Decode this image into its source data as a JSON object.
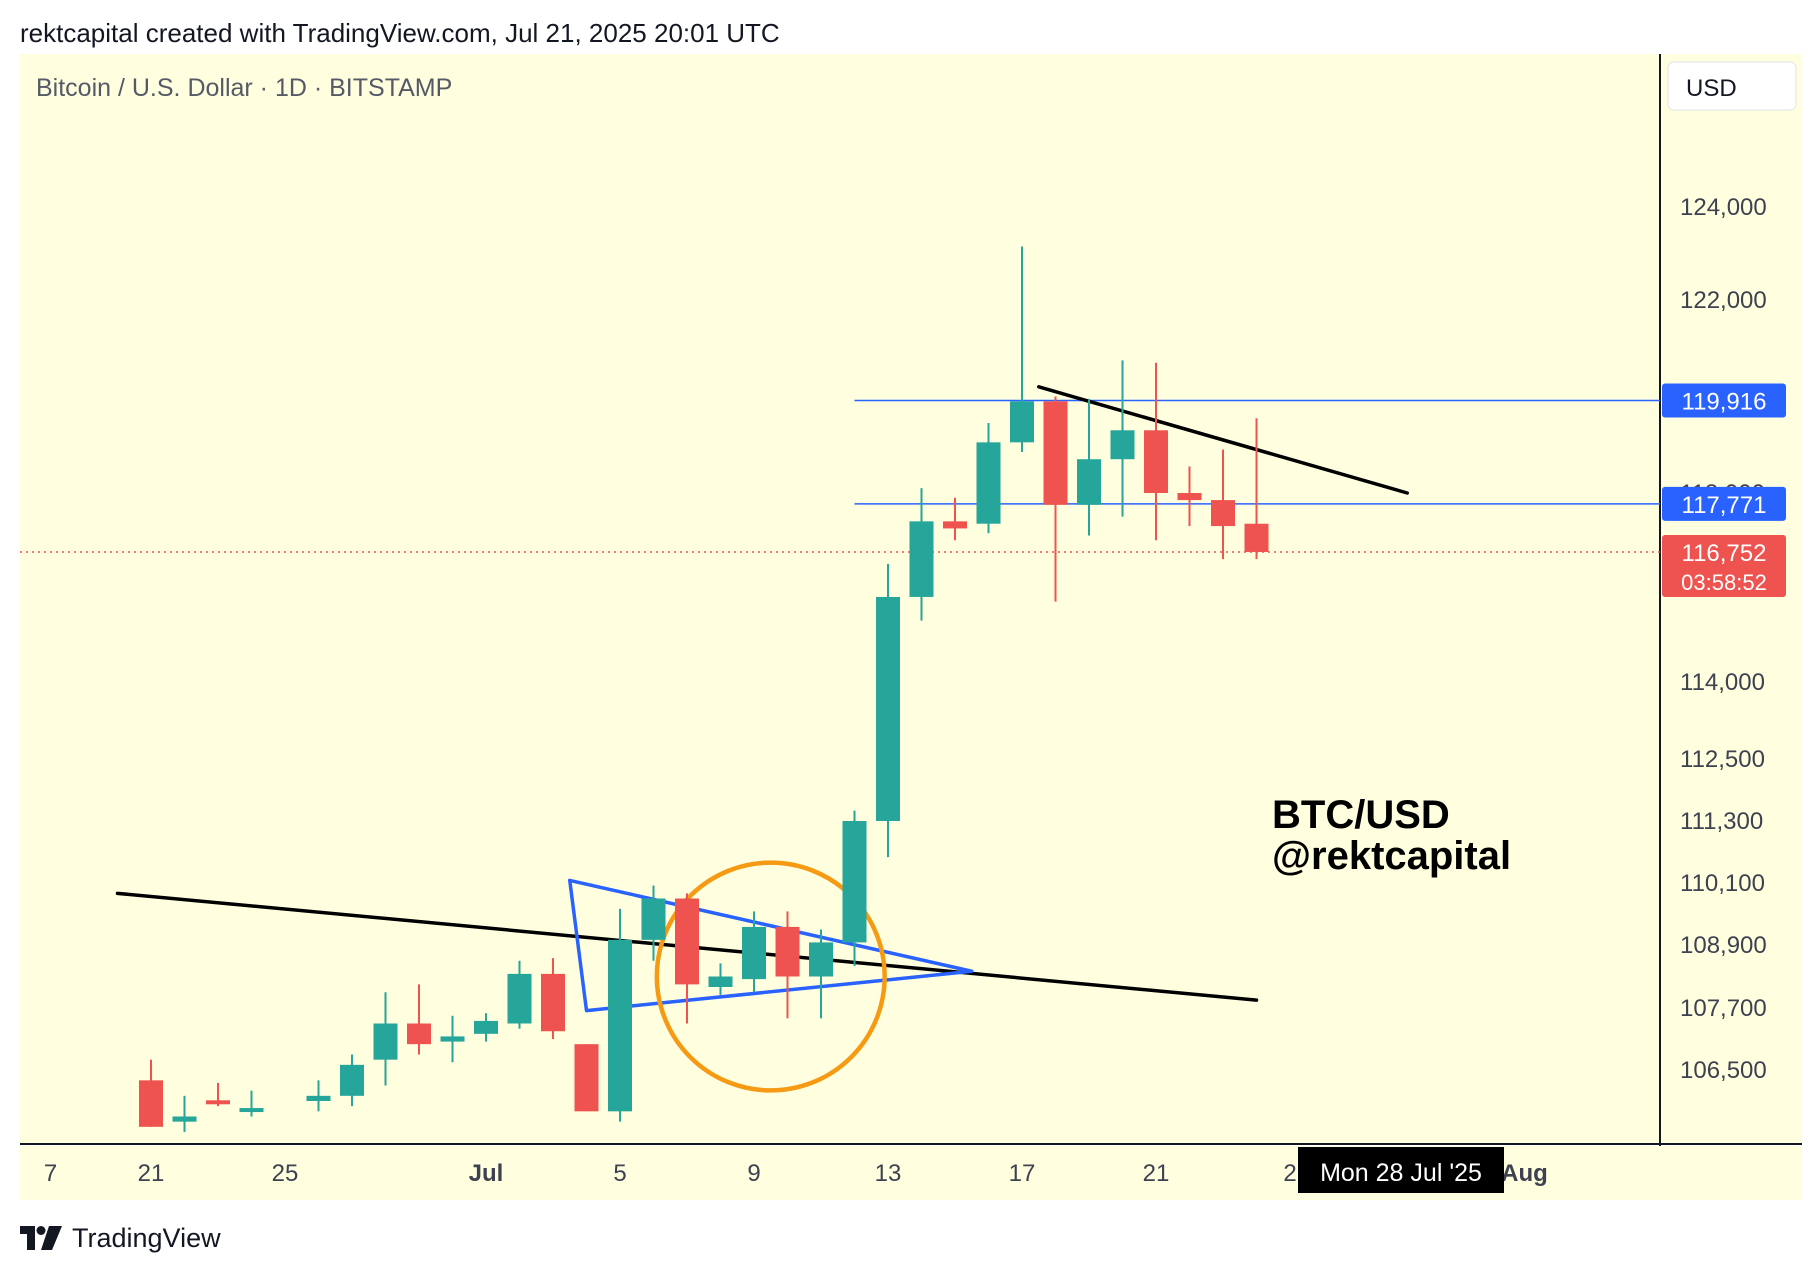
{
  "header": {
    "caption": "rektcapital created with TradingView.com, Jul 21, 2025 20:01 UTC"
  },
  "symbol": {
    "title": "Bitcoin / U.S. Dollar · 1D · BITSTAMP"
  },
  "currency_button": {
    "label": "USD"
  },
  "watermark": {
    "line1": "BTC/USD",
    "line2": "@rektcapital"
  },
  "crosshair": {
    "date_label": "Mon 28 Jul '25"
  },
  "countdown": "03:58:52",
  "footer": {
    "brand": "TradingView"
  },
  "colors": {
    "background": "#ffffe0",
    "up": "#26a69a",
    "down": "#ef5350",
    "level_line": "#2962ff",
    "trend_line": "#000000",
    "triangle": "#2962ff",
    "circle": "#f59a12"
  },
  "chart_data": {
    "type": "candlestick",
    "title": "Bitcoin / U.S. Dollar · 1D · BITSTAMP",
    "y_axis": {
      "side": "right",
      "ticks": [
        124000,
        122000,
        118000,
        114000,
        112500,
        111300,
        110100,
        108900,
        107700,
        106500
      ],
      "tick_labels": [
        "124,000",
        "122,000",
        "118,000",
        "114,000",
        "112,500",
        "111,300",
        "110,100",
        "108,900",
        "107,700",
        "106,500"
      ]
    },
    "x_axis": {
      "ticks": [
        {
          "label": "7",
          "day": -3
        },
        {
          "label": "21",
          "day": 0
        },
        {
          "label": "25",
          "day": 4
        },
        {
          "label": "Jul",
          "day": 10
        },
        {
          "label": "5",
          "day": 14
        },
        {
          "label": "9",
          "day": 18
        },
        {
          "label": "13",
          "day": 22
        },
        {
          "label": "17",
          "day": 26
        },
        {
          "label": "21",
          "day": 30
        },
        {
          "label": "2",
          "day": 34
        },
        {
          "label": "Aug",
          "day": 41
        }
      ]
    },
    "price_levels": [
      {
        "value": 119916,
        "label": "119,916"
      },
      {
        "value": 117771,
        "label": "117,771"
      }
    ],
    "current_price": {
      "value": 116752,
      "label": "116,752"
    },
    "candles": [
      {
        "day": 0,
        "open": 106300,
        "high": 106700,
        "low": 105400,
        "close": 105400
      },
      {
        "day": 1,
        "open": 105500,
        "high": 106000,
        "low": 105300,
        "close": 105600
      },
      {
        "day": 2,
        "open": 105900,
        "high": 106250,
        "low": 105800,
        "close": 105850
      },
      {
        "day": 3,
        "open": 105700,
        "high": 106100,
        "low": 105600,
        "close": 105750
      },
      {
        "day": 5,
        "open": 105900,
        "high": 106300,
        "low": 105700,
        "close": 106000
      },
      {
        "day": 6,
        "open": 106000,
        "high": 106800,
        "low": 105800,
        "close": 106600
      },
      {
        "day": 7,
        "open": 106700,
        "high": 108000,
        "low": 106200,
        "close": 107400
      },
      {
        "day": 8,
        "open": 107400,
        "high": 108150,
        "low": 106800,
        "close": 107000
      },
      {
        "day": 9,
        "open": 107050,
        "high": 107550,
        "low": 106650,
        "close": 107150
      },
      {
        "day": 10,
        "open": 107200,
        "high": 107600,
        "low": 107050,
        "close": 107450
      },
      {
        "day": 11,
        "open": 107400,
        "high": 108600,
        "low": 107300,
        "close": 108350
      },
      {
        "day": 12,
        "open": 108350,
        "high": 108650,
        "low": 107100,
        "close": 107250
      },
      {
        "day": 13,
        "open": 107000,
        "high": 107000,
        "low": 105700,
        "close": 105700
      },
      {
        "day": 14,
        "open": 105700,
        "high": 109600,
        "low": 105500,
        "close": 109000
      },
      {
        "day": 15,
        "open": 109000,
        "high": 110050,
        "low": 108600,
        "close": 109800
      },
      {
        "day": 16,
        "open": 109800,
        "high": 109900,
        "low": 107400,
        "close": 108150
      },
      {
        "day": 17,
        "open": 108100,
        "high": 108550,
        "low": 107950,
        "close": 108300
      },
      {
        "day": 18,
        "open": 108250,
        "high": 109550,
        "low": 108000,
        "close": 109250
      },
      {
        "day": 19,
        "open": 109250,
        "high": 109550,
        "low": 107500,
        "close": 108300
      },
      {
        "day": 20,
        "open": 108300,
        "high": 109200,
        "low": 107500,
        "close": 108950
      },
      {
        "day": 21,
        "open": 108950,
        "high": 111500,
        "low": 108500,
        "close": 111300
      },
      {
        "day": 22,
        "open": 111300,
        "high": 116500,
        "low": 110600,
        "close": 115800
      },
      {
        "day": 23,
        "open": 115800,
        "high": 118100,
        "low": 115300,
        "close": 117400
      },
      {
        "day": 24,
        "open": 117400,
        "high": 117900,
        "low": 117000,
        "close": 117250
      },
      {
        "day": 25,
        "open": 117350,
        "high": 119450,
        "low": 117150,
        "close": 119050
      },
      {
        "day": 26,
        "open": 119050,
        "high": 123150,
        "low": 118850,
        "close": 119900
      },
      {
        "day": 27,
        "open": 119900,
        "high": 120000,
        "low": 115700,
        "close": 117750
      },
      {
        "day": 28,
        "open": 117750,
        "high": 119950,
        "low": 117100,
        "close": 118700
      },
      {
        "day": 29,
        "open": 118700,
        "high": 120750,
        "low": 117500,
        "close": 119300
      },
      {
        "day": 30,
        "open": 119300,
        "high": 120700,
        "low": 117000,
        "close": 118000
      },
      {
        "day": 31,
        "open": 118000,
        "high": 118550,
        "low": 117300,
        "close": 117850
      },
      {
        "day": 32,
        "open": 117850,
        "high": 118900,
        "low": 116600,
        "close": 117300
      },
      {
        "day": 33,
        "open": 117350,
        "high": 119550,
        "low": 116600,
        "close": 116752
      }
    ],
    "drawings": [
      {
        "type": "trendline",
        "color": "black",
        "from": {
          "day": -1,
          "price": 109900
        },
        "to": {
          "day": 33,
          "price": 107850
        }
      },
      {
        "type": "trendline",
        "color": "black",
        "from": {
          "day": 26.5,
          "price": 120200
        },
        "to": {
          "day": 37.5,
          "price": 118000
        }
      },
      {
        "type": "triangle",
        "color": "blue",
        "points": [
          {
            "day": 12.5,
            "price": 110150
          },
          {
            "day": 24.5,
            "price": 108400
          },
          {
            "day": 13,
            "price": 107650
          }
        ]
      },
      {
        "type": "circle",
        "color": "orange",
        "center": {
          "day": 18.5,
          "price": 108300
        },
        "radius_days": 3.4
      }
    ],
    "grid": false,
    "legend": "none"
  }
}
